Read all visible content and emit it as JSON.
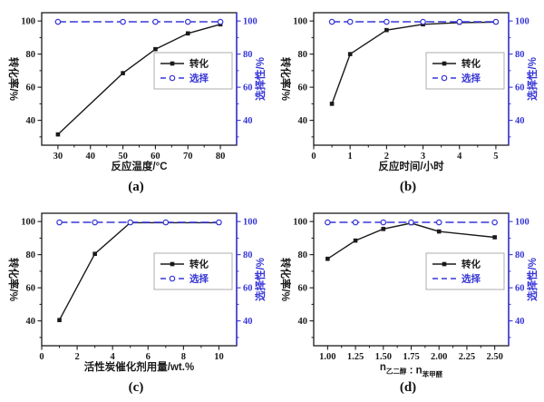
{
  "figure": {
    "background": "#ffffff"
  },
  "colors": {
    "conversion": "#1a1a1a",
    "selectivity": "#3737d8",
    "legend_border": "#9a9a9a",
    "plot_border": "#1a1a1a"
  },
  "legend": {
    "conversion_label": "转化",
    "selectivity_label": "选择"
  },
  "axis_titles": {
    "left": "转化率/%",
    "right": "选择性/%"
  },
  "chart_data": [
    {
      "type": "line",
      "panel_label": "(a)",
      "xlabel": "反应温度/°C",
      "xlim": [
        25,
        85
      ],
      "xtick_values": [
        30,
        40,
        50,
        60,
        70,
        80
      ],
      "xtick_labels": [
        "30",
        "40",
        "50",
        "60",
        "70",
        "80"
      ],
      "x_minor_step": 5,
      "ylim": [
        25,
        105
      ],
      "ytick_values": [
        40,
        60,
        80,
        100
      ],
      "ytick_labels": [
        "40",
        "60",
        "80",
        "100"
      ],
      "ylabel_left": "转化率/%",
      "ylabel_right": "选择性/%",
      "grid": false,
      "legend_position": "right-center",
      "series": [
        {
          "name": "转化",
          "color_key": "conversion",
          "axis": "left",
          "marker": "square",
          "line": "solid",
          "legend_marker": true,
          "x": [
            30,
            50,
            60,
            70,
            80
          ],
          "y": [
            31.5,
            68.5,
            83,
            92.5,
            98
          ]
        },
        {
          "name": "选择",
          "color_key": "selectivity",
          "axis": "right",
          "marker": "circle-open",
          "line": "dashed",
          "legend_marker": true,
          "x": [
            30,
            50,
            60,
            70,
            80
          ],
          "y": [
            99.5,
            99.5,
            99.5,
            99.5,
            99.5
          ]
        }
      ]
    },
    {
      "type": "line",
      "panel_label": "(b)",
      "xlabel": "反应时间/小时",
      "xlim": [
        0,
        5.35
      ],
      "xtick_values": [
        0,
        1,
        2,
        3,
        4,
        5
      ],
      "xtick_labels": [
        "0",
        "1",
        "2",
        "3",
        "4",
        "5"
      ],
      "x_minor_step": 0.5,
      "ylim": [
        25,
        105
      ],
      "ytick_values": [
        40,
        60,
        80,
        100
      ],
      "ytick_labels": [
        "40",
        "60",
        "80",
        "100"
      ],
      "ylabel_left": "转化率/%",
      "ylabel_right": "选择性/%",
      "grid": false,
      "legend_position": "right-center",
      "series": [
        {
          "name": "转化",
          "color_key": "conversion",
          "axis": "left",
          "marker": "square",
          "line": "solid",
          "legend_marker": true,
          "x": [
            0.5,
            1,
            2,
            3,
            4,
            5
          ],
          "y": [
            50,
            80,
            94.5,
            98,
            99,
            99.3
          ]
        },
        {
          "name": "选择",
          "color_key": "selectivity",
          "axis": "right",
          "marker": "circle-open",
          "line": "dashed",
          "legend_marker": true,
          "x": [
            0.5,
            1,
            2,
            3,
            4,
            5
          ],
          "y": [
            99.5,
            99.5,
            99.5,
            99.5,
            99.5,
            99.5
          ]
        }
      ]
    },
    {
      "type": "line",
      "panel_label": "(c)",
      "xlabel": "活性炭催化剂用量/wt.%",
      "xlim": [
        0,
        11
      ],
      "xtick_values": [
        0,
        2,
        4,
        6,
        8,
        10
      ],
      "xtick_labels": [
        "0",
        "2",
        "4",
        "6",
        "8",
        "10"
      ],
      "x_minor_step": 1,
      "ylim": [
        25,
        105
      ],
      "ytick_values": [
        40,
        60,
        80,
        100
      ],
      "ytick_labels": [
        "40",
        "60",
        "80",
        "100"
      ],
      "ylabel_left": "转化率/%",
      "ylabel_right": "选择性/%",
      "grid": false,
      "legend_position": "right-center",
      "series": [
        {
          "name": "转化",
          "color_key": "conversion",
          "axis": "left",
          "marker": "square",
          "line": "solid",
          "legend_marker": true,
          "x": [
            1,
            3,
            5,
            7,
            10
          ],
          "y": [
            40.5,
            80.5,
            99.3,
            99.3,
            99.3
          ]
        },
        {
          "name": "选择",
          "color_key": "selectivity",
          "axis": "right",
          "marker": "circle-open",
          "line": "dashed",
          "legend_marker": true,
          "x": [
            1,
            3,
            5,
            7,
            10
          ],
          "y": [
            99.5,
            99.5,
            99.5,
            99.5,
            99.5
          ]
        }
      ]
    },
    {
      "type": "line",
      "panel_label": "(d)",
      "xlabel": "n乙二醇 : n苯甲醛",
      "xlabel_parts": [
        {
          "text": "n",
          "sub": false
        },
        {
          "text": "乙二醇",
          "sub": true
        },
        {
          "text": " : n",
          "sub": false
        },
        {
          "text": "苯甲醛",
          "sub": true
        }
      ],
      "xlim": [
        0.875,
        2.625
      ],
      "xtick_values": [
        1.0,
        1.25,
        1.5,
        1.75,
        2.0,
        2.25,
        2.5
      ],
      "xtick_labels": [
        "1.00",
        "1.25",
        "1.50",
        "1.75",
        "2.00",
        "2.25",
        "2.50"
      ],
      "x_minor_step": 0.125,
      "ylim": [
        25,
        105
      ],
      "ytick_values": [
        40,
        60,
        80,
        100
      ],
      "ytick_labels": [
        "40",
        "60",
        "80",
        "100"
      ],
      "ylabel_left": "转化率/%",
      "ylabel_right": "选择性/%",
      "grid": false,
      "legend_position": "right-center",
      "series": [
        {
          "name": "转化",
          "color_key": "conversion",
          "axis": "left",
          "marker": "square",
          "line": "solid",
          "legend_marker": true,
          "x": [
            1.0,
            1.25,
            1.5,
            1.75,
            2.0,
            2.5
          ],
          "y": [
            77.5,
            88.5,
            95.5,
            99,
            94,
            90.5
          ]
        },
        {
          "name": "选择",
          "color_key": "selectivity",
          "axis": "right",
          "marker": "circle-open",
          "line": "dashed",
          "legend_marker": false,
          "x": [
            1.0,
            1.25,
            1.5,
            1.75,
            2.0,
            2.5
          ],
          "y": [
            99.5,
            99.5,
            99.5,
            99.5,
            99.5,
            99.5
          ]
        }
      ]
    }
  ]
}
